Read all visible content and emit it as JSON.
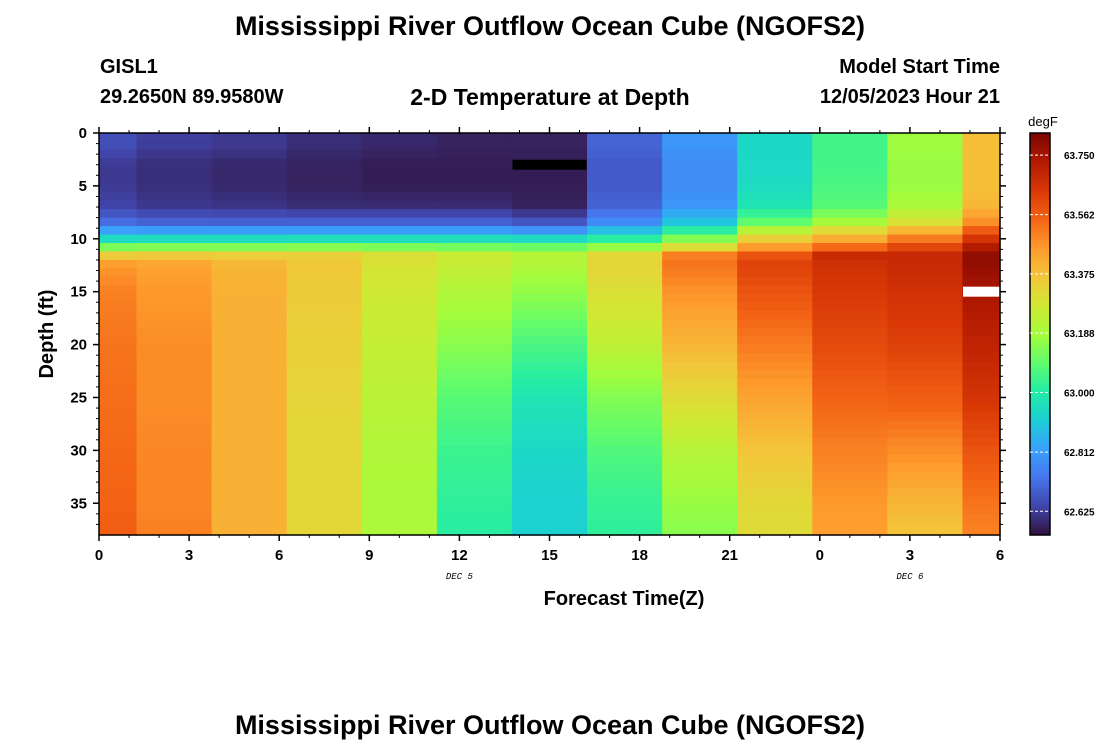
{
  "header": {
    "title": "Mississippi River Outflow Ocean Cube (NGOFS2)",
    "station_id": "GISL1",
    "station_coords": "29.2650N  89.9580W",
    "model_start_label": "Model Start Time",
    "model_start_value": "12/05/2023 Hour 21"
  },
  "footer": {
    "title": "Mississippi River Outflow Ocean Cube (NGOFS2)"
  },
  "chart_data": {
    "type": "heatmap",
    "title": "2-D Temperature at Depth",
    "xlabel": "Forecast Time(Z)",
    "ylabel": "Depth (ft)",
    "x_tick_labels": [
      "0",
      "3",
      "6",
      "9",
      "12",
      "15",
      "18",
      "21",
      "0",
      "3",
      "6"
    ],
    "x_hours": [
      0,
      3,
      6,
      9,
      12,
      15,
      18,
      21,
      24,
      27,
      30
    ],
    "x_range": [
      0,
      30
    ],
    "date_labels": [
      {
        "text": "DEC 5",
        "hour": 12
      },
      {
        "text": "DEC 6",
        "hour": 27
      }
    ],
    "y_ticks": [
      0,
      5,
      10,
      15,
      20,
      25,
      30,
      35
    ],
    "y_range": [
      0,
      38
    ],
    "y_inverted": true,
    "colorbar": {
      "units": "degF",
      "tick_labels": [
        "63.750",
        "63.562",
        "63.375",
        "63.188",
        "63.000",
        "62.812",
        "62.625"
      ],
      "tick_values": [
        63.75,
        63.562,
        63.375,
        63.188,
        63.0,
        62.812,
        62.625
      ],
      "min": 62.55,
      "max": 63.82,
      "colors": [
        "#30123b",
        "#4145ab",
        "#4675ed",
        "#39a2fc",
        "#1bcfd4",
        "#24eca6",
        "#61fc6c",
        "#a4fc3b",
        "#d1e834",
        "#f3c63a",
        "#fe9b2d",
        "#f36315",
        "#d93806",
        "#b11901",
        "#7a0403"
      ]
    },
    "time_steps_hours": [
      0,
      2.5,
      5,
      7.5,
      10,
      12.5,
      15,
      17.5,
      20,
      22.5,
      25,
      27.5,
      30
    ],
    "depth_profile_ft": [
      1,
      3,
      5,
      7,
      8.5,
      9.5,
      10.5,
      11.5,
      12.5,
      15,
      20,
      25,
      30,
      35,
      37.5
    ],
    "temperature_degF": [
      [
        62.66,
        62.62,
        62.62,
        62.64,
        62.72,
        62.86,
        63.04,
        63.34,
        63.46,
        63.5,
        63.52,
        63.53,
        63.54,
        63.55,
        63.56
      ],
      [
        62.63,
        62.6,
        62.6,
        62.62,
        62.7,
        62.86,
        63.05,
        63.35,
        63.44,
        63.46,
        63.48,
        63.48,
        63.49,
        63.49,
        63.5
      ],
      [
        62.62,
        62.59,
        62.59,
        62.61,
        62.7,
        62.86,
        63.05,
        63.34,
        63.4,
        63.41,
        63.41,
        63.41,
        63.41,
        63.41,
        63.41
      ],
      [
        62.6,
        62.58,
        62.58,
        62.6,
        62.7,
        62.86,
        63.06,
        63.34,
        63.36,
        63.35,
        63.34,
        63.33,
        63.32,
        63.32,
        63.32
      ],
      [
        62.59,
        62.57,
        62.57,
        62.6,
        62.7,
        62.86,
        63.06,
        63.3,
        63.29,
        63.27,
        63.25,
        63.23,
        63.21,
        63.2,
        63.2
      ],
      [
        62.58,
        62.57,
        62.57,
        62.6,
        62.7,
        62.86,
        63.06,
        63.26,
        63.25,
        63.21,
        63.15,
        63.08,
        63.04,
        63.02,
        63.01
      ],
      [
        62.58,
        62.57,
        62.57,
        62.58,
        62.68,
        62.84,
        63.06,
        63.22,
        63.21,
        63.16,
        63.06,
        62.98,
        62.94,
        62.92,
        62.92
      ],
      [
        62.7,
        62.68,
        62.68,
        62.7,
        62.78,
        62.92,
        63.1,
        63.32,
        63.33,
        63.3,
        63.24,
        63.14,
        63.07,
        63.03,
        63.02
      ],
      [
        62.8,
        62.78,
        62.78,
        62.8,
        62.9,
        63.06,
        63.22,
        63.5,
        63.52,
        63.47,
        63.4,
        63.31,
        63.22,
        63.17,
        63.15
      ],
      [
        62.94,
        62.94,
        62.95,
        62.98,
        63.1,
        63.28,
        63.4,
        63.58,
        63.62,
        63.58,
        63.51,
        63.44,
        63.37,
        63.32,
        63.31
      ],
      [
        63.05,
        63.05,
        63.06,
        63.08,
        63.2,
        63.36,
        63.48,
        63.68,
        63.66,
        63.64,
        63.6,
        63.55,
        63.5,
        63.46,
        63.45
      ],
      [
        63.18,
        63.17,
        63.17,
        63.2,
        63.3,
        63.44,
        63.58,
        63.68,
        63.68,
        63.66,
        63.62,
        63.56,
        63.48,
        63.4,
        63.37
      ],
      [
        63.38,
        63.38,
        63.38,
        63.4,
        63.48,
        63.6,
        63.7,
        63.78,
        63.78,
        63.74,
        63.7,
        63.65,
        63.58,
        63.52,
        63.5
      ]
    ],
    "gap_markers": [
      {
        "time_hour": 15,
        "depth_ft": 3,
        "color": "#000000"
      },
      {
        "time_hour": 30,
        "depth_ft": 15,
        "color": "#ffffff"
      }
    ]
  }
}
